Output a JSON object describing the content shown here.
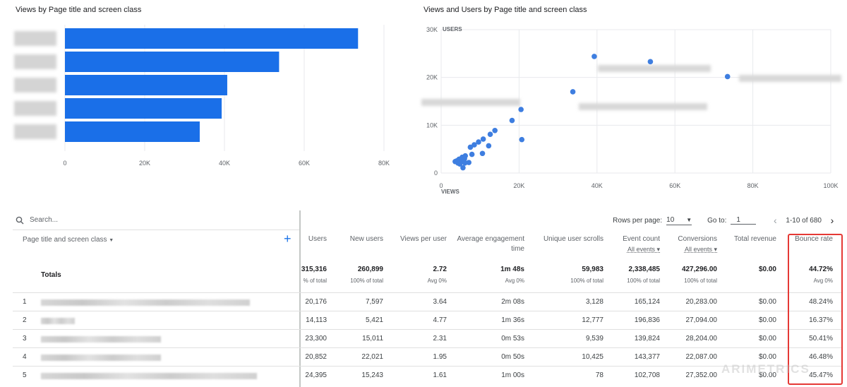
{
  "bar_chart": {
    "title": "Views by Page title and screen class",
    "chart_data": {
      "type": "bar",
      "orientation": "horizontal",
      "categories": [
        "",
        "",
        "",
        "",
        ""
      ],
      "values": [
        73500,
        53700,
        40700,
        39300,
        33800
      ],
      "xlim": [
        0,
        80000
      ],
      "x_ticks": [
        "0",
        "20K",
        "40K",
        "60K",
        "80K"
      ],
      "grid": true
    },
    "bar_color": "#1a6fe8"
  },
  "scatter_chart": {
    "title": "Views and Users by Page title and screen class",
    "chart_data": {
      "type": "scatter",
      "xlabel": "VIEWS",
      "ylabel": "USERS",
      "xlim": [
        0,
        100000
      ],
      "ylim": [
        0,
        30000
      ],
      "x_ticks": [
        "0",
        "20K",
        "40K",
        "60K",
        "80K",
        "100K"
      ],
      "y_ticks": [
        "0",
        "10K",
        "20K",
        "30K"
      ],
      "points": [
        [
          39300,
          24395
        ],
        [
          53700,
          23300
        ],
        [
          73500,
          20176
        ],
        [
          33800,
          17000
        ],
        [
          20500,
          13300
        ],
        [
          18200,
          11000
        ],
        [
          20700,
          7000
        ],
        [
          13800,
          8900
        ],
        [
          12600,
          8100
        ],
        [
          10800,
          7100
        ],
        [
          9600,
          6500
        ],
        [
          8500,
          5900
        ],
        [
          12200,
          5700
        ],
        [
          7500,
          5400
        ],
        [
          10600,
          4100
        ],
        [
          7900,
          3900
        ],
        [
          6200,
          3600
        ],
        [
          5400,
          3300
        ],
        [
          6000,
          3000
        ],
        [
          4600,
          2900
        ],
        [
          3900,
          2500
        ],
        [
          5000,
          2300
        ],
        [
          6100,
          2100
        ],
        [
          4200,
          2600
        ],
        [
          5800,
          2700
        ],
        [
          4800,
          1900
        ],
        [
          5600,
          1100
        ],
        [
          3600,
          2400
        ],
        [
          4300,
          2100
        ],
        [
          7100,
          2200
        ]
      ]
    },
    "point_color": "#3e7ee0"
  },
  "table": {
    "search_placeholder": "Search...",
    "rows_per_page_label": "Rows per page:",
    "rows_per_page_value": "10",
    "goto_label": "Go to:",
    "goto_value": "1",
    "range_text": "1-10 of 680",
    "dimension_header": "Page title and screen class",
    "columns": [
      {
        "label": "Users",
        "sub": ""
      },
      {
        "label": "New users",
        "sub": ""
      },
      {
        "label": "Views per user",
        "sub": ""
      },
      {
        "label": "Average engagement time",
        "sub": ""
      },
      {
        "label": "Unique user scrolls",
        "sub": ""
      },
      {
        "label": "Event count",
        "sub": "All events"
      },
      {
        "label": "Conversions",
        "sub": "All events"
      },
      {
        "label": "Total revenue",
        "sub": ""
      },
      {
        "label": "Bounce rate",
        "sub": ""
      }
    ],
    "totals_label": "Totals",
    "totals": [
      {
        "v": "315,316",
        "s": "% of total"
      },
      {
        "v": "260,899",
        "s": "100% of total"
      },
      {
        "v": "2.72",
        "s": "Avg 0%"
      },
      {
        "v": "1m 48s",
        "s": "Avg 0%"
      },
      {
        "v": "59,983",
        "s": "100% of total"
      },
      {
        "v": "2,338,485",
        "s": "100% of total"
      },
      {
        "v": "427,296.00",
        "s": "100% of total"
      },
      {
        "v": "$0.00",
        "s": ""
      },
      {
        "v": "44.72%",
        "s": "Avg 0%"
      }
    ],
    "rows": [
      {
        "idx": "1",
        "cells": [
          "20,176",
          "7,597",
          "3.64",
          "2m 08s",
          "3,128",
          "165,124",
          "20,283.00",
          "$0.00",
          "48.24%"
        ]
      },
      {
        "idx": "2",
        "cells": [
          "14,113",
          "5,421",
          "4.77",
          "1m 36s",
          "12,777",
          "196,836",
          "27,094.00",
          "$0.00",
          "16.37%"
        ]
      },
      {
        "idx": "3",
        "cells": [
          "23,300",
          "15,011",
          "2.31",
          "0m 53s",
          "9,539",
          "139,824",
          "28,204.00",
          "$0.00",
          "50.41%"
        ]
      },
      {
        "idx": "4",
        "cells": [
          "20,852",
          "22,021",
          "1.95",
          "0m 50s",
          "10,425",
          "143,377",
          "22,087.00",
          "$0.00",
          "46.48%"
        ]
      },
      {
        "idx": "5",
        "cells": [
          "24,395",
          "15,243",
          "1.61",
          "1m 00s",
          "78",
          "102,708",
          "27,352.00",
          "$0.00",
          "45.47%"
        ]
      }
    ]
  },
  "watermark": "ARIMETRICS",
  "highlight_color": "#e53935"
}
